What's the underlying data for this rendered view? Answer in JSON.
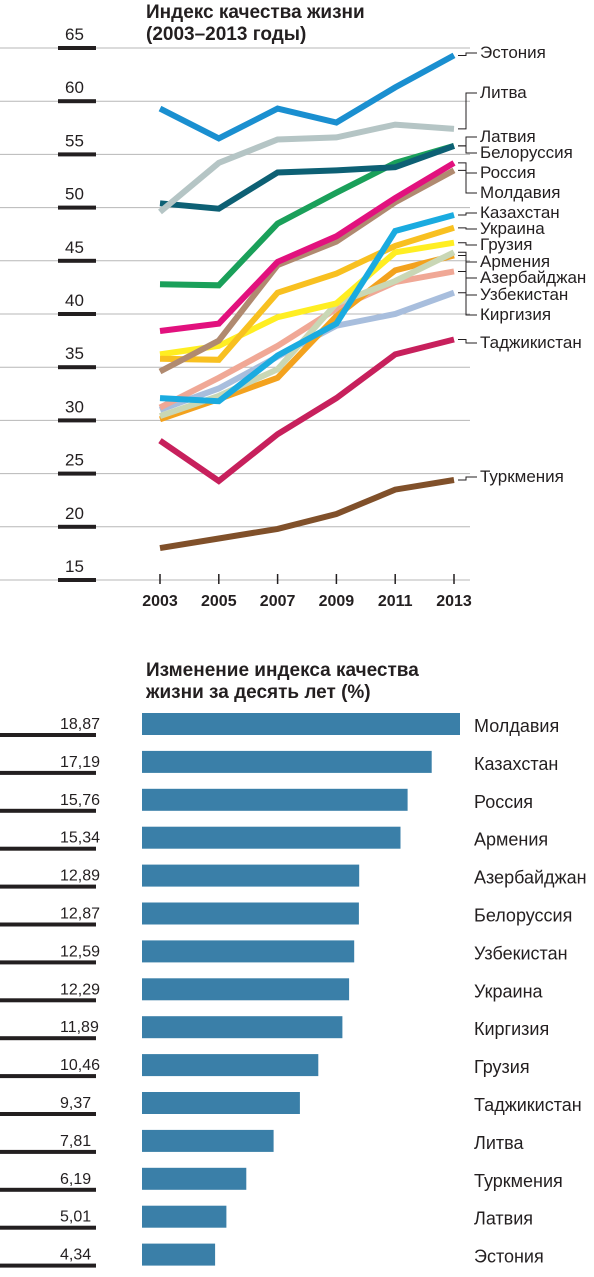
{
  "chart_data": [
    {
      "type": "line",
      "title": [
        "Индекс качества жизни",
        "(2003–2013 годы)"
      ],
      "x": [
        2003,
        2005,
        2007,
        2009,
        2011,
        2013
      ],
      "x_ticks": [
        "2003",
        "2005",
        "2007",
        "2009",
        "2011",
        "2013"
      ],
      "y_ticks": [
        "15",
        "20",
        "25",
        "30",
        "35",
        "40",
        "45",
        "50",
        "55",
        "60",
        "65"
      ],
      "ylim": [
        15,
        65
      ],
      "grid": "horizontal",
      "series": [
        {
          "name": "Эстония",
          "color": "#1a8fd0",
          "values": [
            59.3,
            56.5,
            59.3,
            58.0,
            61.3,
            64.3
          ]
        },
        {
          "name": "Литва",
          "color": "#b5c5c5",
          "values": [
            49.6,
            54.2,
            56.4,
            56.6,
            57.8,
            57.4
          ]
        },
        {
          "name": "Латвия",
          "color": "#0d6074",
          "values": [
            50.4,
            49.9,
            53.3,
            53.5,
            53.8,
            55.8
          ]
        },
        {
          "name": "Белоруссия",
          "color": "#1aa05a",
          "values": [
            42.8,
            42.7,
            48.5,
            51.4,
            54.2,
            55.8
          ]
        },
        {
          "name": "Россия",
          "color": "#e2117e",
          "values": [
            38.4,
            39.1,
            44.9,
            47.3,
            50.9,
            54.2
          ]
        },
        {
          "name": "Молдавия",
          "color": "#b08a70",
          "values": [
            34.6,
            37.5,
            44.6,
            46.8,
            50.5,
            53.5
          ]
        },
        {
          "name": "Казахстан",
          "color": "#1aabe0",
          "values": [
            32.1,
            31.8,
            36.1,
            39.1,
            47.8,
            49.3
          ]
        },
        {
          "name": "Украина",
          "color": "#f8c020",
          "values": [
            35.8,
            35.7,
            42.0,
            43.8,
            46.4,
            48.1
          ]
        },
        {
          "name": "Грузия",
          "color": "#ffee22",
          "values": [
            36.2,
            37.0,
            39.7,
            41.0,
            45.8,
            46.7
          ]
        },
        {
          "name": "Армения",
          "color": "#c9d7b5",
          "values": [
            30.4,
            32.3,
            34.8,
            41.0,
            43.1,
            45.8
          ]
        },
        {
          "name": "Азербайджан",
          "color": "#f3a21e",
          "values": [
            30.1,
            32.0,
            34.0,
            39.8,
            44.1,
            45.5
          ]
        },
        {
          "name": "Узбекистан",
          "color": "#a8bedd",
          "values": [
            31.0,
            33.0,
            36.0,
            38.9,
            40.0,
            42.0
          ]
        },
        {
          "name": "Киргизия",
          "color": "#f0a896",
          "values": [
            31.2,
            34.0,
            37.0,
            40.5,
            43.0,
            44.0
          ]
        },
        {
          "name": "Таджикистан",
          "color": "#c7205c",
          "values": [
            28.1,
            24.3,
            28.7,
            32.1,
            36.2,
            37.6
          ]
        },
        {
          "name": "Туркмения",
          "color": "#80502a",
          "values": [
            18.0,
            18.9,
            19.8,
            21.2,
            23.5,
            24.4
          ]
        }
      ]
    },
    {
      "type": "bar",
      "orientation": "horizontal",
      "title": [
        "Изменение индекса качества",
        "жизни за десять лет (%)"
      ],
      "bar_color": "#3a7fa8",
      "categories": [
        "Молдавия",
        "Казахстан",
        "Россия",
        "Армения",
        "Азербайджан",
        "Белоруссия",
        "Узбекистан",
        "Украина",
        "Киргизия",
        "Грузия",
        "Таджикистан",
        "Литва",
        "Туркмения",
        "Латвия",
        "Эстония"
      ],
      "values": [
        18.87,
        17.19,
        15.76,
        15.34,
        12.89,
        12.87,
        12.59,
        12.29,
        11.89,
        10.46,
        9.37,
        7.81,
        6.19,
        5.01,
        4.34
      ],
      "value_labels": [
        "18,87",
        "17,19",
        "15,76",
        "15,34",
        "12,89",
        "12,87",
        "12,59",
        "12,29",
        "11,89",
        "10,46",
        "9,37",
        "7,81",
        "6,19",
        "5,01",
        "4,34"
      ]
    }
  ]
}
